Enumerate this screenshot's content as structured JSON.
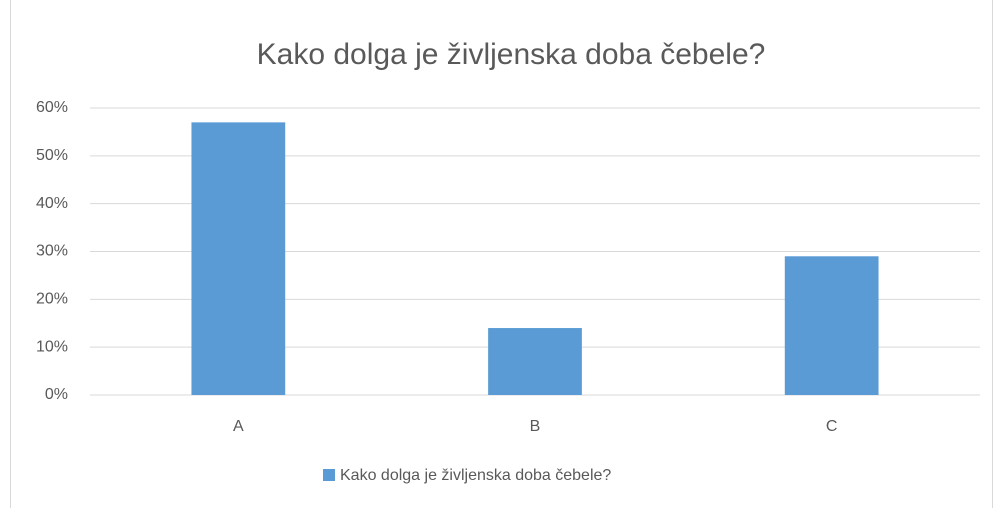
{
  "chart_data": {
    "type": "bar",
    "title": "Kako dolga je življenska doba čebele?",
    "categories": [
      "A",
      "B",
      "C"
    ],
    "series": [
      {
        "name": "Kako dolga je življenska doba čebele?",
        "color": "#5b9bd5",
        "values": [
          57,
          14,
          29
        ]
      }
    ],
    "ylim": [
      0,
      60
    ],
    "yticks": [
      {
        "value": 0,
        "label": "0%"
      },
      {
        "value": 10,
        "label": "10%"
      },
      {
        "value": 20,
        "label": "20%"
      },
      {
        "value": 30,
        "label": "30%"
      },
      {
        "value": 40,
        "label": "40%"
      },
      {
        "value": 50,
        "label": "50%"
      },
      {
        "value": 60,
        "label": "60%"
      }
    ],
    "grid": true,
    "legend": "bottom"
  }
}
